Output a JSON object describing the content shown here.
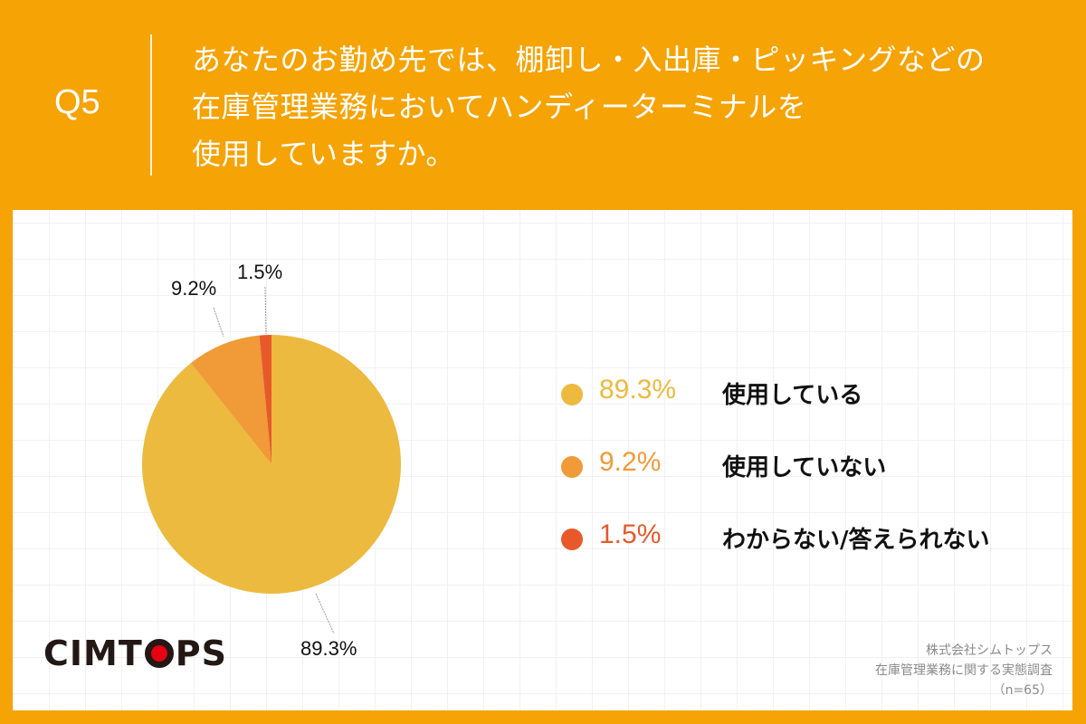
{
  "header": {
    "question_number": "Q5",
    "question_lines": [
      "あなたのお勤め先では、棚卸し・入出庫・ピッキングなどの",
      "在庫管理業務においてハンディーターミナルを",
      "使用していますか。"
    ]
  },
  "colors": {
    "background": "#f5a305",
    "slice_used": "#ecba3e",
    "slice_not_used": "#f09a38",
    "slice_unknown": "#e8592a",
    "logo_red": "#e60012"
  },
  "chart_data": {
    "type": "pie",
    "title": "在庫管理業務においてハンディーターミナルを使用していますか。",
    "categories": [
      "使用している",
      "使用していない",
      "わからない/答えられない"
    ],
    "values": [
      89.3,
      9.2,
      1.5
    ],
    "unit": "%",
    "data_labels": [
      "89.3%",
      "9.2%",
      "1.5%"
    ],
    "colors": [
      "#ecba3e",
      "#f09a38",
      "#e8592a"
    ],
    "start_angle": "12 o'clock, counter-clockwise for minor slices",
    "legend_position": "right",
    "sample_size": "n=65"
  },
  "legend": {
    "items": [
      {
        "pct": "89.3%",
        "label": "使用している",
        "color": "#ecba3e"
      },
      {
        "pct": "9.2%",
        "label": "使用していない",
        "color": "#f09a38"
      },
      {
        "pct": "1.5%",
        "label": "わからない/答えられない",
        "color": "#e8592a"
      }
    ]
  },
  "logo": {
    "left": "CIMT",
    "right": "PS"
  },
  "source": {
    "company": "株式会社シムトップス",
    "survey": "在庫管理業務に関する実態調査",
    "n": "（n=65）"
  }
}
